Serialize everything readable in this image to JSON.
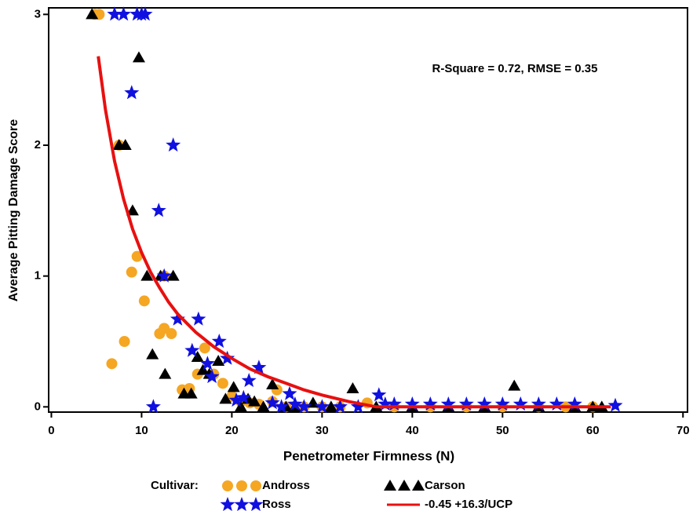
{
  "chart_data": {
    "type": "scatter",
    "annotation": "R-Square = 0.72, RMSE = 0.35",
    "x_label": "Penetrometer Firmness (N)",
    "y_label": "Average Pitting Damage Score",
    "legend_title": "Cultivar:",
    "xlim": [
      -0.3,
      70.5
    ],
    "ylim": [
      -0.04,
      3.05
    ],
    "xticks": [
      0,
      10,
      20,
      30,
      40,
      50,
      60,
      70
    ],
    "yticks": [
      0,
      1,
      2,
      3
    ],
    "series": [
      {
        "name": "Andross",
        "color": "#f5a623",
        "marker": "circle",
        "x": [
          4.8,
          5.3,
          6.7,
          7.5,
          8.1,
          8.9,
          9.5,
          10.3,
          12,
          12.5,
          13.3,
          12.5,
          14.5,
          15.3,
          16.2,
          17,
          18,
          19,
          20,
          21,
          22,
          23,
          24.5,
          25,
          26,
          28,
          30,
          32,
          35,
          38,
          42,
          46,
          50,
          54,
          57,
          60
        ],
        "values": [
          3,
          3,
          0.33,
          2,
          0.5,
          1.03,
          1.15,
          0.81,
          0.56,
          0.6,
          0.56,
          1,
          0.13,
          0.14,
          0.25,
          0.45,
          0.25,
          0.18,
          0.08,
          0.04,
          0.03,
          0.02,
          0.04,
          0.13,
          0,
          0,
          0,
          0,
          0.03,
          0,
          0,
          0,
          0,
          0,
          0,
          0
        ]
      },
      {
        "name": "Carson",
        "color": "#000000",
        "marker": "triangle",
        "x": [
          4.5,
          7.5,
          8.2,
          9,
          9.7,
          10.6,
          11.2,
          12.1,
          12.6,
          13.5,
          14.7,
          15.5,
          16.2,
          16.8,
          17.5,
          18.5,
          19.3,
          20.2,
          21,
          21.8,
          22.5,
          23.5,
          24.5,
          26,
          27,
          29,
          31,
          33.4,
          36,
          40,
          44,
          48,
          51.3,
          54,
          58,
          60,
          61
        ],
        "values": [
          3,
          2,
          2,
          1.5,
          2.67,
          1,
          0.4,
          1,
          0.25,
          1,
          0.1,
          0.1,
          0.38,
          0.28,
          0.25,
          0.35,
          0.06,
          0.15,
          0,
          0.06,
          0.04,
          0,
          0.17,
          0,
          0,
          0.03,
          0,
          0.14,
          0,
          0,
          0,
          0,
          0.16,
          0,
          0,
          0,
          0
        ]
      },
      {
        "name": "Ross",
        "color": "#1010e0",
        "marker": "star",
        "x": [
          7,
          8,
          9.5,
          10,
          10.4,
          8.9,
          13.5,
          11.9,
          12.5,
          11.3,
          14,
          16.3,
          15.6,
          17.3,
          17.8,
          18.6,
          19.5,
          20.5,
          21.3,
          21.9,
          23,
          24.5,
          25.5,
          26.4,
          27,
          28,
          30,
          32,
          34,
          36.3,
          37,
          38,
          40,
          42,
          44,
          46,
          48,
          50,
          52,
          54,
          56,
          58,
          62.5
        ],
        "values": [
          3,
          3,
          3,
          3,
          3,
          2.4,
          2,
          1.5,
          1,
          0,
          0.67,
          0.67,
          0.43,
          0.33,
          0.23,
          0.5,
          0.37,
          0.05,
          0.07,
          0.2,
          0.3,
          0.03,
          0,
          0.1,
          0.02,
          0,
          0,
          0,
          0,
          0.09,
          0.02,
          0.02,
          0.02,
          0.02,
          0.02,
          0.02,
          0.02,
          0.02,
          0.02,
          0.02,
          0.02,
          0.02,
          0.01
        ]
      },
      {
        "name": "-0.45 +16.3/UCP",
        "color": "#e81010",
        "marker": "line",
        "x": [
          5.2,
          6,
          7,
          8,
          9,
          10,
          11,
          12,
          13,
          14,
          15,
          16,
          18,
          20,
          22,
          24,
          26,
          28,
          30,
          33,
          36,
          40,
          50,
          62
        ],
        "values": [
          2.68,
          2.27,
          1.88,
          1.59,
          1.36,
          1.18,
          1.03,
          0.91,
          0.8,
          0.71,
          0.64,
          0.57,
          0.46,
          0.37,
          0.29,
          0.23,
          0.18,
          0.13,
          0.09,
          0.04,
          0,
          0,
          0,
          0
        ]
      }
    ]
  }
}
